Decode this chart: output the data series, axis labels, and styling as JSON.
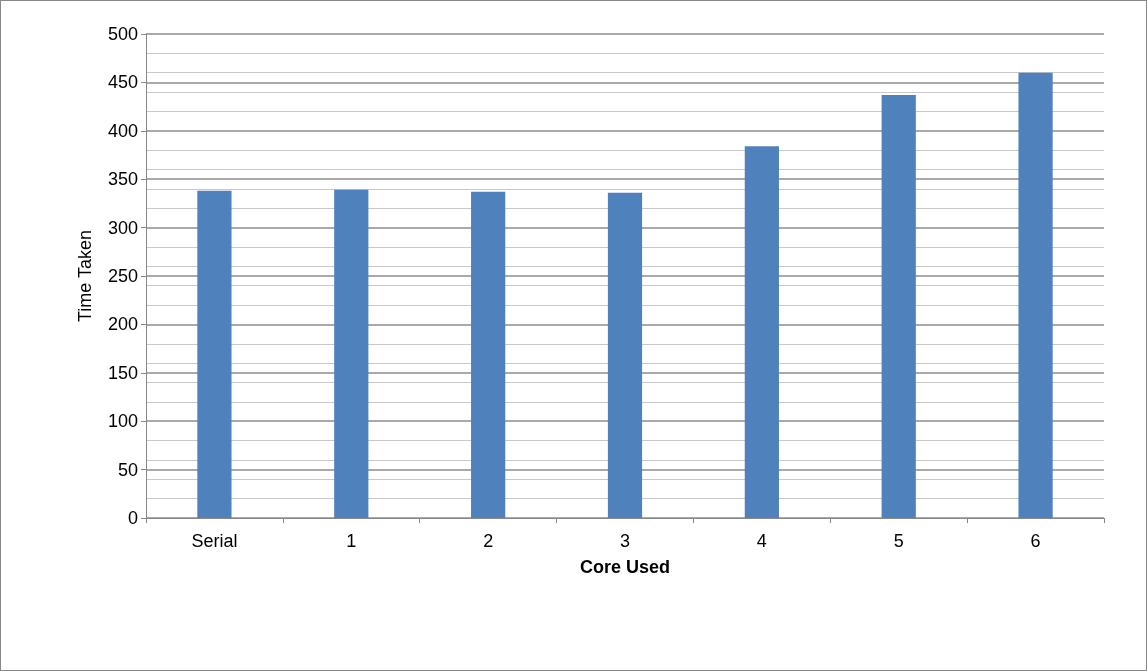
{
  "chart_data": {
    "type": "bar",
    "xlabel": "Core Used",
    "ylabel": "Time Taken",
    "categories": [
      "Serial",
      "1",
      "2",
      "3",
      "4",
      "5",
      "6"
    ],
    "values": [
      338,
      339,
      337,
      336,
      384,
      437,
      460
    ],
    "color": "#4f81bd",
    "ylim": [
      0,
      500
    ],
    "yticks": [
      0,
      50,
      100,
      150,
      200,
      250,
      300,
      350,
      400,
      450,
      500
    ],
    "grid": "y"
  }
}
